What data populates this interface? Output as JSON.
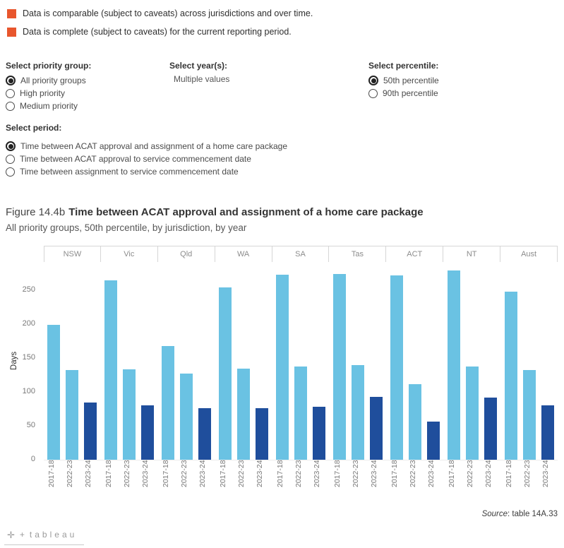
{
  "legend": {
    "marker_color": "#e8562d",
    "items": [
      {
        "label": "Data is comparable (subject to caveats) across jurisdictions and over time."
      },
      {
        "label": "Data is complete (subject to caveats) for the current reporting period."
      }
    ]
  },
  "filters": {
    "priority_group": {
      "label": "Select priority group:",
      "options": [
        {
          "label": "All priority groups",
          "selected": true
        },
        {
          "label": "High priority",
          "selected": false
        },
        {
          "label": "Medium priority",
          "selected": false
        }
      ]
    },
    "years": {
      "label": "Select year(s):",
      "value": "Multiple values"
    },
    "percentile": {
      "label": "Select percentile:",
      "options": [
        {
          "label": "50th percentile",
          "selected": true
        },
        {
          "label": "90th percentile",
          "selected": false
        }
      ]
    },
    "period": {
      "label": "Select  period:",
      "options": [
        {
          "label": "Time between ACAT approval and assignment of a home care package",
          "selected": true
        },
        {
          "label": "Time between ACAT approval to service commencement date",
          "selected": false
        },
        {
          "label": "Time between assignment to service commencement date",
          "selected": false
        }
      ]
    }
  },
  "figure": {
    "title_prefix": "Figure 14.4b",
    "title_bold": "Time between ACAT approval and assignment of a home care package",
    "subtitle": "All priority groups, 50th percentile, by jurisdiction, by year"
  },
  "chart_data": {
    "type": "bar",
    "title": "Figure 14.4b Time between ACAT approval and assignment of a home care package",
    "subtitle": "All priority groups, 50th percentile, by jurisdiction, by year",
    "ylabel": "Days",
    "ylim": [
      0,
      290
    ],
    "yticks": [
      0,
      50,
      100,
      150,
      200,
      250
    ],
    "grid": false,
    "legend_position": "none",
    "categories": [
      "NSW",
      "Vic",
      "Qld",
      "WA",
      "SA",
      "Tas",
      "ACT",
      "NT",
      "Aust"
    ],
    "series": [
      {
        "name": "2017-18",
        "color": "#6ac2e3",
        "values": [
          199,
          265,
          168,
          255,
          273,
          274,
          272,
          280,
          248
        ]
      },
      {
        "name": "2022-23",
        "color": "#6ac2e3",
        "values": [
          132,
          134,
          127,
          135,
          138,
          140,
          112,
          138,
          133
        ]
      },
      {
        "name": "2023-24",
        "color": "#1f4e9c",
        "values": [
          85,
          80,
          76,
          76,
          78,
          93,
          56,
          92,
          80
        ]
      }
    ]
  },
  "source": {
    "italic": "Source",
    "rest": ": table 14A.33"
  },
  "footer": {
    "logo_cross": "✛",
    "logo_plus": "+",
    "brand": "tableau"
  }
}
